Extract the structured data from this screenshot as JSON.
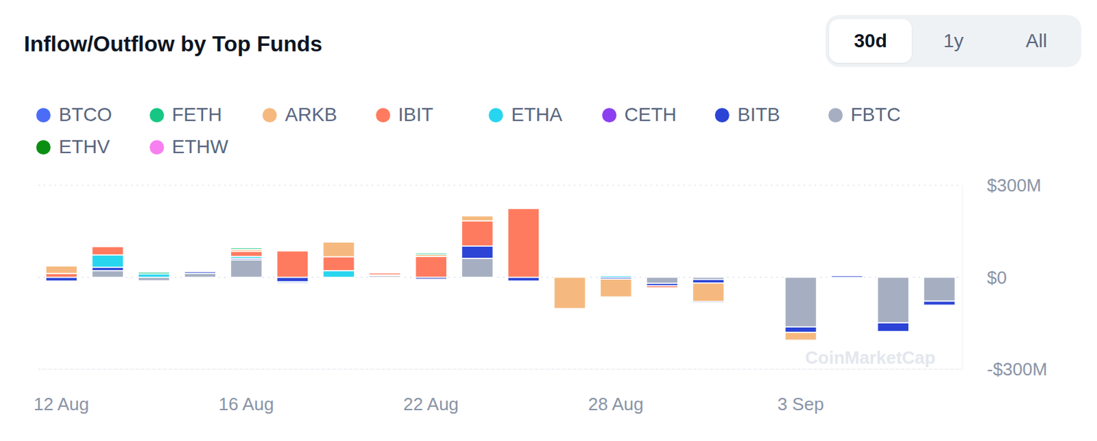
{
  "chart_data": {
    "type": "bar",
    "title": "Inflow/Outflow by Top Funds",
    "buttons": [
      "30d",
      "1y",
      "All"
    ],
    "watermark": "CoinMarketCap",
    "categories": [
      "12 Aug",
      null,
      null,
      null,
      "16 Aug",
      null,
      null,
      null,
      "22 Aug",
      null,
      null,
      null,
      "28 Aug",
      null,
      null,
      null,
      "3 Sep",
      null,
      null,
      null
    ],
    "series": [
      {
        "name": "BTCO",
        "color": "#4a6cf7",
        "values": [
          null,
          null,
          null,
          null,
          null,
          -4,
          null,
          null,
          null,
          null,
          null,
          null,
          null,
          null,
          -4,
          null,
          null,
          null,
          null,
          null
        ]
      },
      {
        "name": "FETH",
        "color": "#16c784",
        "values": [
          null,
          null,
          6,
          null,
          5,
          null,
          null,
          null,
          5,
          null,
          null,
          null,
          null,
          null,
          null,
          null,
          null,
          null,
          null,
          null
        ]
      },
      {
        "name": "ARKB",
        "color": "#f5b97f",
        "values": [
          25,
          null,
          null,
          null,
          6,
          null,
          48,
          null,
          6,
          16,
          null,
          -102,
          -58,
          null,
          -60,
          null,
          -25,
          null,
          null,
          null
        ]
      },
      {
        "name": "IBIT",
        "color": "#ff7b5f",
        "values": [
          12,
          27,
          null,
          null,
          17,
          86,
          45,
          6,
          68,
          82,
          224,
          null,
          null,
          -6,
          null,
          null,
          null,
          null,
          null,
          null
        ]
      },
      {
        "name": "ETHA",
        "color": "#28d5ef",
        "values": [
          null,
          40,
          11,
          null,
          6,
          null,
          22,
          null,
          null,
          null,
          null,
          null,
          5,
          null,
          null,
          null,
          null,
          null,
          null,
          null
        ]
      },
      {
        "name": "CETH",
        "color": "#8b3ff0",
        "values": [
          null,
          null,
          null,
          null,
          null,
          null,
          null,
          null,
          null,
          null,
          null,
          null,
          null,
          null,
          null,
          null,
          null,
          null,
          null,
          null
        ]
      },
      {
        "name": "BITB",
        "color": "#2b44d6",
        "values": [
          -12,
          11,
          null,
          5,
          5,
          -15,
          null,
          3,
          -6,
          40,
          -12,
          null,
          -6,
          -8,
          -12,
          null,
          -18,
          5,
          -28,
          -13
        ]
      },
      {
        "name": "FBTC",
        "color": "#a6afc2",
        "values": [
          null,
          22,
          -11,
          13,
          57,
          null,
          null,
          5,
          null,
          62,
          null,
          null,
          null,
          -20,
          -7,
          null,
          -162,
          null,
          -149,
          -78
        ]
      },
      {
        "name": "ETHV",
        "color": "#0a8f12",
        "values": [
          null,
          null,
          null,
          null,
          null,
          null,
          null,
          null,
          null,
          null,
          null,
          null,
          null,
          null,
          null,
          null,
          null,
          null,
          null,
          null
        ]
      },
      {
        "name": "ETHW",
        "color": "#f77ff0",
        "values": [
          null,
          null,
          null,
          null,
          null,
          null,
          null,
          null,
          null,
          null,
          null,
          null,
          null,
          null,
          null,
          null,
          null,
          null,
          null,
          null
        ]
      }
    ],
    "ylim": [
      -300,
      300
    ],
    "yticks": [
      {
        "value": -300,
        "label": "-$300M"
      },
      {
        "value": 0,
        "label": "$0"
      },
      {
        "value": 300,
        "label": "$300M"
      }
    ],
    "stacked": true,
    "grid": true,
    "legend": "top"
  }
}
